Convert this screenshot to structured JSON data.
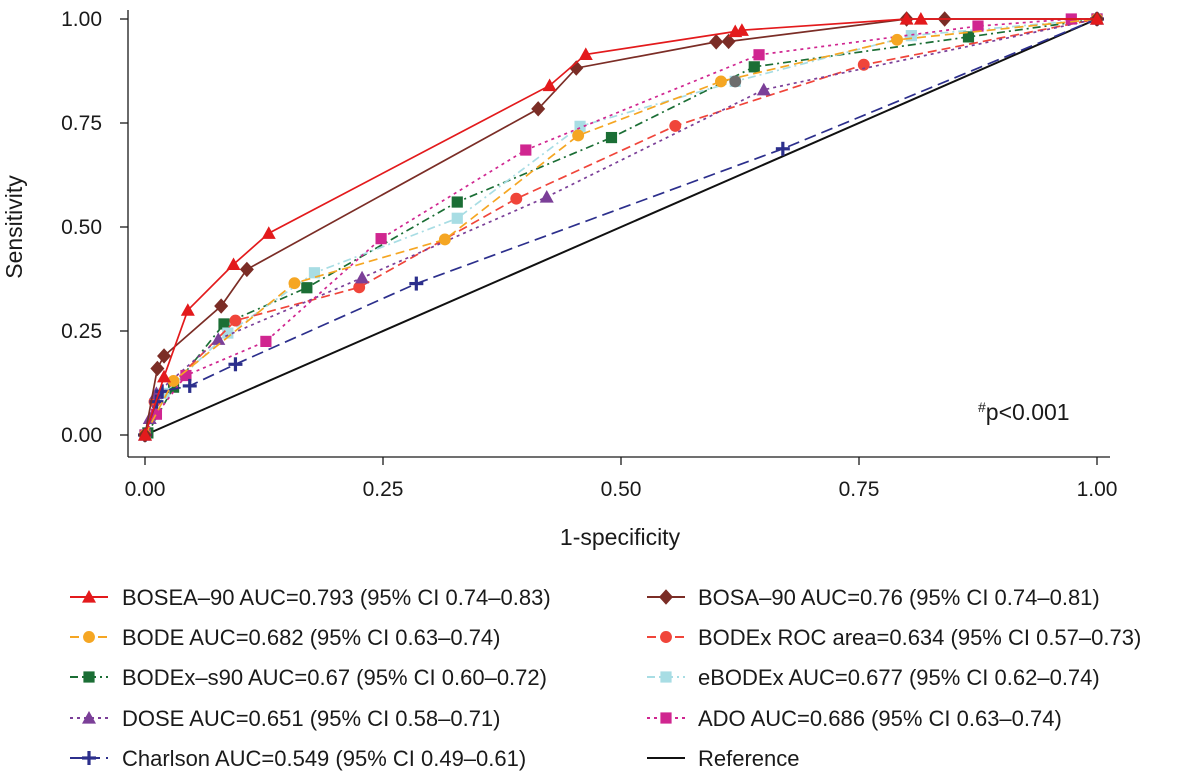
{
  "chart_data": {
    "type": "line",
    "xlabel": "1-specificity",
    "ylabel": "Sensitivity",
    "xlim": [
      0,
      1
    ],
    "ylim": [
      0,
      1
    ],
    "x_ticks": [
      "0.00",
      "0.25",
      "0.50",
      "0.75",
      "1.00"
    ],
    "y_ticks": [
      "0.00",
      "0.25",
      "0.50",
      "0.75",
      "1.00"
    ],
    "grid": false,
    "legend_position": "bottom",
    "annotation": {
      "superscript": "#",
      "text": "p<0.001"
    },
    "series": [
      {
        "name": "BOSEA–90 AUC=0.793 (95% CI 0.74–0.83)",
        "color": "#e31a1c",
        "marker": "triangle",
        "dash": "solid",
        "points": [
          [
            0,
            0
          ],
          [
            0.02,
            0.14
          ],
          [
            0.045,
            0.3
          ],
          [
            0.093,
            0.41
          ],
          [
            0.13,
            0.485
          ],
          [
            0.425,
            0.84
          ],
          [
            0.463,
            0.915
          ],
          [
            0.62,
            0.97
          ],
          [
            0.627,
            0.973
          ],
          [
            0.8,
            1.0
          ],
          [
            0.815,
            1.0
          ],
          [
            1.0,
            1.0
          ]
        ]
      },
      {
        "name": "BOSA–90 AUC=0.76 (95% CI 0.74–0.81)",
        "color": "#7b2d26",
        "marker": "diamond",
        "dash": "solid",
        "points": [
          [
            0,
            0
          ],
          [
            0.013,
            0.16
          ],
          [
            0.02,
            0.19
          ],
          [
            0.08,
            0.31
          ],
          [
            0.107,
            0.398
          ],
          [
            0.413,
            0.784
          ],
          [
            0.453,
            0.882
          ],
          [
            0.6,
            0.945
          ],
          [
            0.613,
            0.946
          ],
          [
            0.8,
            1.0
          ],
          [
            0.84,
            1.0
          ],
          [
            1.0,
            1.0
          ]
        ]
      },
      {
        "name": "BODE AUC=0.682 (95% CI 0.63–0.74)",
        "color": "#f5a623",
        "marker": "circle",
        "dash": "dashed",
        "points": [
          [
            0,
            0
          ],
          [
            0.03,
            0.13
          ],
          [
            0.157,
            0.365
          ],
          [
            0.315,
            0.47
          ],
          [
            0.455,
            0.72
          ],
          [
            0.605,
            0.85
          ],
          [
            0.79,
            0.95
          ],
          [
            1.0,
            1.0
          ]
        ]
      },
      {
        "name": "BODEx ROC area=0.634 (95% CI 0.57–0.73)",
        "color": "#f0453a",
        "marker": "circle",
        "dash": "dashed",
        "points": [
          [
            0,
            0
          ],
          [
            0.01,
            0.08
          ],
          [
            0.095,
            0.275
          ],
          [
            0.225,
            0.355
          ],
          [
            0.39,
            0.568
          ],
          [
            0.557,
            0.743
          ],
          [
            0.755,
            0.89
          ],
          [
            1.0,
            1.0
          ]
        ]
      },
      {
        "name": "BODEx–s90 AUC=0.67 (95% CI 0.60–0.72)",
        "color": "#1b6e35",
        "marker": "square",
        "dash": "dashdot",
        "points": [
          [
            0,
            0
          ],
          [
            0.003,
            0.005
          ],
          [
            0.03,
            0.115
          ],
          [
            0.083,
            0.267
          ],
          [
            0.17,
            0.354
          ],
          [
            0.328,
            0.56
          ],
          [
            0.49,
            0.715
          ],
          [
            0.64,
            0.885
          ],
          [
            0.865,
            0.957
          ],
          [
            1.0,
            1.0
          ]
        ]
      },
      {
        "name": "eBODEx AUC=0.677 (95% CI 0.62–0.74)",
        "color": "#a8dde4",
        "marker": "square",
        "dash": "dashdot",
        "points": [
          [
            0,
            0
          ],
          [
            0.02,
            0.1
          ],
          [
            0.087,
            0.245
          ],
          [
            0.178,
            0.39
          ],
          [
            0.328,
            0.521
          ],
          [
            0.457,
            0.742
          ],
          [
            0.62,
            0.85
          ],
          [
            0.805,
            0.96
          ],
          [
            1.0,
            1.0
          ]
        ]
      },
      {
        "name": "DOSE AUC=0.651 (95% CI 0.58–0.71)",
        "color": "#7b3f98",
        "marker": "triangle",
        "dash": "dotted",
        "points": [
          [
            0,
            0
          ],
          [
            0.005,
            0.04
          ],
          [
            0.012,
            0.1
          ],
          [
            0.077,
            0.23
          ],
          [
            0.228,
            0.378
          ],
          [
            0.422,
            0.572
          ],
          [
            0.65,
            0.83
          ],
          [
            1.0,
            1.0
          ]
        ]
      },
      {
        "name": "ADO AUC=0.686 (95% CI 0.63–0.74)",
        "color": "#d02690",
        "marker": "square",
        "dash": "dotted",
        "points": [
          [
            0,
            0
          ],
          [
            0.012,
            0.05
          ],
          [
            0.043,
            0.143
          ],
          [
            0.127,
            0.225
          ],
          [
            0.248,
            0.472
          ],
          [
            0.4,
            0.685
          ],
          [
            0.645,
            0.914
          ],
          [
            0.875,
            0.983
          ],
          [
            0.973,
            1.0
          ],
          [
            1.0,
            1.0
          ]
        ]
      },
      {
        "name": "Charlson AUC=0.549 (95% CI 0.49–0.61)",
        "color": "#2c2f8c",
        "marker": "plus",
        "dash": "longdash",
        "points": [
          [
            0,
            0
          ],
          [
            0.012,
            0.08
          ],
          [
            0.018,
            0.105
          ],
          [
            0.047,
            0.118
          ],
          [
            0.095,
            0.17
          ],
          [
            0.285,
            0.364
          ],
          [
            0.67,
            0.688
          ],
          [
            1.0,
            1.0
          ]
        ]
      },
      {
        "name": "Reference",
        "color": "#111111",
        "marker": "none",
        "dash": "solid",
        "points": [
          [
            0,
            0
          ],
          [
            1,
            1
          ]
        ]
      }
    ],
    "extra_markers": [
      {
        "note": "grey circle",
        "color": "#6d6d6d",
        "marker": "circle",
        "point": [
          0.62,
          0.85
        ]
      }
    ]
  }
}
